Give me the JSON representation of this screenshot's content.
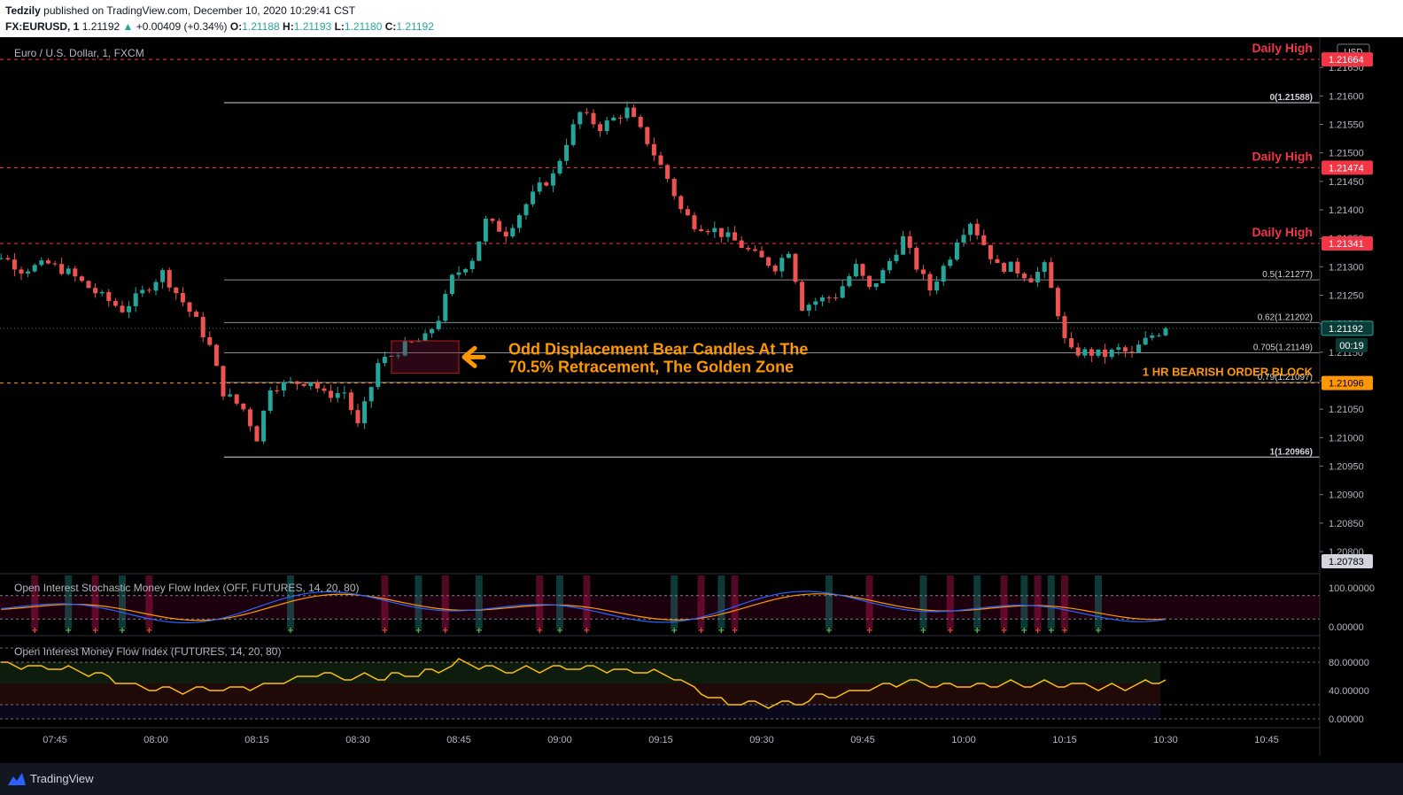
{
  "header": {
    "publisher": "Tedzily",
    "published_text": "published on TradingView.com, December 10, 2020 10:29:41 CST",
    "symbol": "FX:EURUSD, 1",
    "last": "1.21192",
    "change": "+0.00409 (+0.34%)",
    "o_label": "O:",
    "o": "1.21188",
    "h_label": "H:",
    "h": "1.21193",
    "l_label": "L:",
    "l": "1.21180",
    "c_label": "C:",
    "c": "1.21192"
  },
  "footer": {
    "brand": "TradingView"
  },
  "colors": {
    "up": "#26a69a",
    "down": "#ef5350",
    "daily_high": "#f23645",
    "accent": "#ff9800",
    "fib": "#d1d4dc",
    "blue": "#2962ff"
  },
  "chart_data": [
    {
      "type": "candlestick",
      "title": "Euro / U.S. Dollar, 1, FXCM",
      "currency": "USD",
      "ylim": [
        1.20783,
        1.217
      ],
      "y_ticks": [
        "1.21650",
        "1.21600",
        "1.21550",
        "1.21500",
        "1.21450",
        "1.21400",
        "1.21350",
        "1.21300",
        "1.21250",
        "1.21200",
        "1.21150",
        "1.21100",
        "1.21050",
        "1.21000",
        "1.20950",
        "1.20900",
        "1.20850",
        "1.20800"
      ],
      "x_ticks": [
        {
          "label": "07:45",
          "t": -30
        },
        {
          "label": "08:00",
          "t": -15
        },
        {
          "label": "08:15",
          "t": 0
        },
        {
          "label": "08:30",
          "t": 15
        },
        {
          "label": "08:45",
          "t": 30
        },
        {
          "label": "09:00",
          "t": 45
        },
        {
          "label": "09:15",
          "t": 60
        },
        {
          "label": "09:30",
          "t": 75
        },
        {
          "label": "09:45",
          "t": 90
        },
        {
          "label": "10:00",
          "t": 105
        },
        {
          "label": "10:15",
          "t": 120
        },
        {
          "label": "10:30",
          "t": 135
        },
        {
          "label": "10:45",
          "t": 150
        }
      ],
      "daily_highs": [
        {
          "label": "Daily High",
          "price": 1.21664,
          "value": "1.21664"
        },
        {
          "label": "Daily High",
          "price": 1.21474,
          "value": "1.21474"
        },
        {
          "label": "Daily High",
          "price": 1.21341,
          "value": "1.21341"
        }
      ],
      "order_block": {
        "label": "1 HR BEARISH ORDER BLOCK",
        "price": 1.21096,
        "value": "1.21096"
      },
      "current_price": {
        "value": "1.21192",
        "countdown": "00:19",
        "price": 1.21192
      },
      "low_marker": {
        "value": "1.20783",
        "price": 1.20783
      },
      "fib_levels": [
        {
          "label": "0(1.21588)",
          "price": 1.21588
        },
        {
          "label": "0.5(1.21277)",
          "price": 1.21277
        },
        {
          "label": "0.62(1.21202)",
          "price": 1.21202
        },
        {
          "label": "0.705(1.21149)",
          "price": 1.21149
        },
        {
          "label": "0.79(1.21097)",
          "price": 1.21097
        },
        {
          "label": "1(1.20966)",
          "price": 1.20966
        }
      ],
      "annotation": {
        "line1": "Odd Displacement Bear Candles At The",
        "line2": "70.5% Retracement, The Golden Zone",
        "box_t": [
          20,
          30
        ],
        "box_price": [
          1.2117,
          1.21113
        ]
      },
      "candle_keypoints": [
        [
          -43,
          1.21275
        ],
        [
          -38,
          1.2132
        ],
        [
          -35,
          1.21295
        ],
        [
          -31,
          1.21305
        ],
        [
          -28,
          1.2129
        ],
        [
          -24,
          1.21255
        ],
        [
          -20,
          1.21225
        ],
        [
          -17,
          1.21255
        ],
        [
          -14,
          1.2129
        ],
        [
          -12,
          1.21255
        ],
        [
          -9,
          1.21205
        ],
        [
          -7,
          1.2116
        ],
        [
          -5,
          1.2108
        ],
        [
          -2,
          1.2105
        ],
        [
          0,
          1.21
        ],
        [
          2,
          1.2109
        ],
        [
          5,
          1.21095
        ],
        [
          8,
          1.211
        ],
        [
          10,
          1.21075
        ],
        [
          13,
          1.2108
        ],
        [
          15,
          1.2102
        ],
        [
          17,
          1.2109
        ],
        [
          18,
          1.2113
        ],
        [
          22,
          1.2116
        ],
        [
          25,
          1.21175
        ],
        [
          27,
          1.2121
        ],
        [
          29,
          1.2128
        ],
        [
          32,
          1.21315
        ],
        [
          34,
          1.2138
        ],
        [
          37,
          1.2136
        ],
        [
          40,
          1.2141
        ],
        [
          42,
          1.2144
        ],
        [
          44,
          1.2146
        ],
        [
          46,
          1.2152
        ],
        [
          48,
          1.2157
        ],
        [
          51,
          1.21545
        ],
        [
          53,
          1.2156
        ],
        [
          55,
          1.21575
        ],
        [
          58,
          1.2152
        ],
        [
          61,
          1.21455
        ],
        [
          63,
          1.214
        ],
        [
          65,
          1.21375
        ],
        [
          68,
          1.21365
        ],
        [
          71,
          1.21345
        ],
        [
          74,
          1.2132
        ],
        [
          77,
          1.213
        ],
        [
          79,
          1.2133
        ],
        [
          81,
          1.2123
        ],
        [
          83,
          1.2124
        ],
        [
          86,
          1.2125
        ],
        [
          89,
          1.213
        ],
        [
          91,
          1.2126
        ],
        [
          93,
          1.2129
        ],
        [
          96,
          1.2135
        ],
        [
          98,
          1.213
        ],
        [
          100,
          1.2126
        ],
        [
          103,
          1.2132
        ],
        [
          104,
          1.2135
        ],
        [
          106,
          1.2138
        ],
        [
          108,
          1.2134
        ],
        [
          110,
          1.213
        ],
        [
          112,
          1.213
        ],
        [
          115,
          1.2128
        ],
        [
          117,
          1.213
        ],
        [
          119,
          1.2122
        ],
        [
          120,
          1.2117
        ],
        [
          121,
          1.2115
        ],
        [
          123,
          1.2115
        ],
        [
          126,
          1.21145
        ],
        [
          128,
          1.21155
        ],
        [
          130,
          1.21145
        ],
        [
          131,
          1.2116
        ],
        [
          133,
          1.2118
        ],
        [
          135,
          1.21192
        ]
      ]
    },
    {
      "type": "line",
      "title": "Open Interest Stochastic Money Flow Index (OFF, FUTURES, 14, 20, 80)",
      "y_ticks": [
        "100.00000",
        "0.00000"
      ],
      "ylim": [
        0,
        100
      ]
    },
    {
      "type": "line",
      "title": "Open Interest Money Flow Index (FUTURES, 14, 20, 80)",
      "y_ticks": [
        "80.00000",
        "40.00000",
        "0.00000"
      ],
      "ylim": [
        0,
        100
      ]
    }
  ]
}
